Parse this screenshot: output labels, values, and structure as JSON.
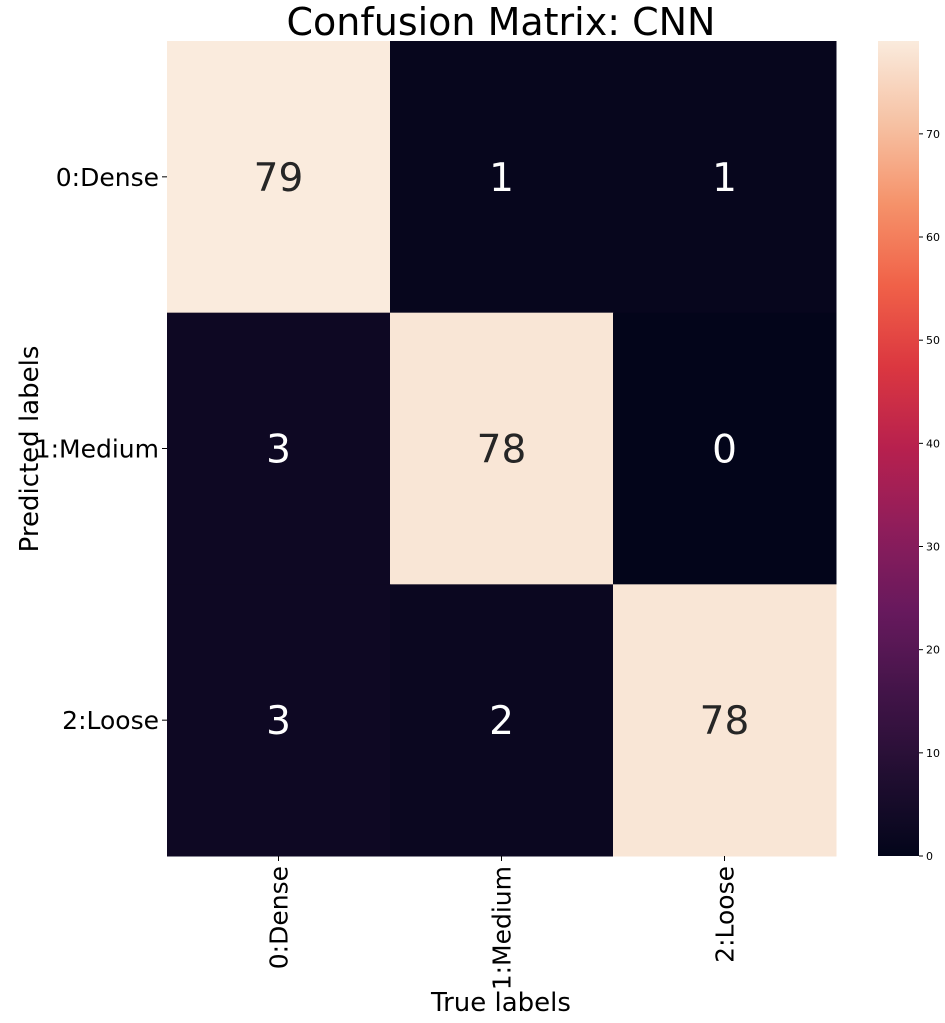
{
  "chart_data": {
    "type": "heatmap",
    "title": "Confusion Matrix: CNN",
    "xlabel": "True labels",
    "ylabel": "Predicted labels",
    "x_categories": [
      "0:Dense",
      "1:Medium",
      "2:Loose"
    ],
    "y_categories": [
      "0:Dense",
      "1:Medium",
      "2:Loose"
    ],
    "values": [
      [
        79,
        1,
        1
      ],
      [
        3,
        78,
        0
      ],
      [
        3,
        2,
        78
      ]
    ],
    "colorbar": {
      "min": 0,
      "max": 79,
      "ticks": [
        0,
        10,
        20,
        30,
        40,
        50,
        60,
        70
      ]
    },
    "colormap": "rocket",
    "grid": false
  }
}
